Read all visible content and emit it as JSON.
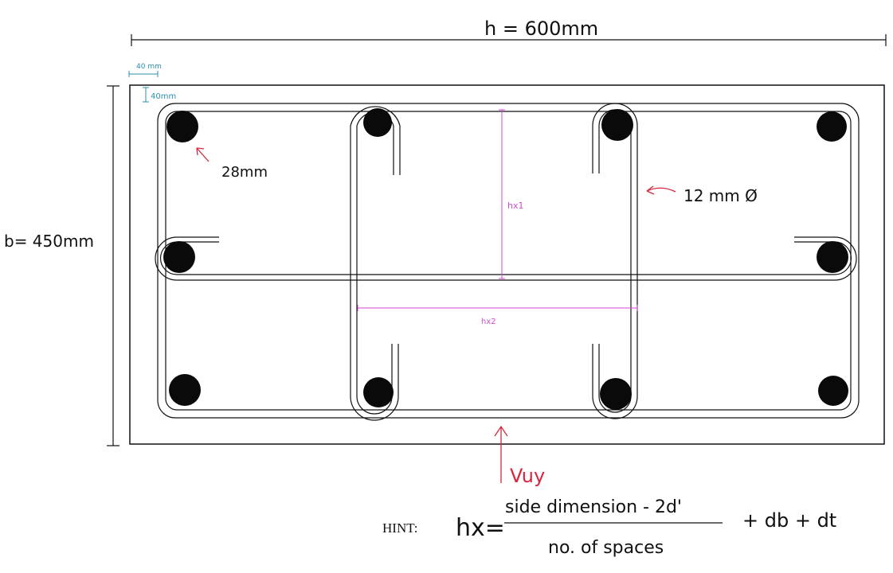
{
  "dimensions": {
    "width_label": "h = 600mm",
    "height_label": "b= 450mm",
    "cover_h_label": "40 mm",
    "cover_v_label": "40mm"
  },
  "annotations": {
    "bar_size": "28mm",
    "tie_size": "12 mm Ø",
    "hx1": "hx1",
    "hx2": "hx2",
    "shear": "Vuy"
  },
  "hint": {
    "label": "HINT:",
    "lhs": "hx=",
    "numerator": "side dimension - 2d'",
    "denominator": "no. of spaces",
    "tail": "+ db + dt"
  },
  "colors": {
    "ink": "#111111",
    "red": "#d7263d",
    "blue": "#2b8fb0",
    "pink": "#d04ad0"
  }
}
